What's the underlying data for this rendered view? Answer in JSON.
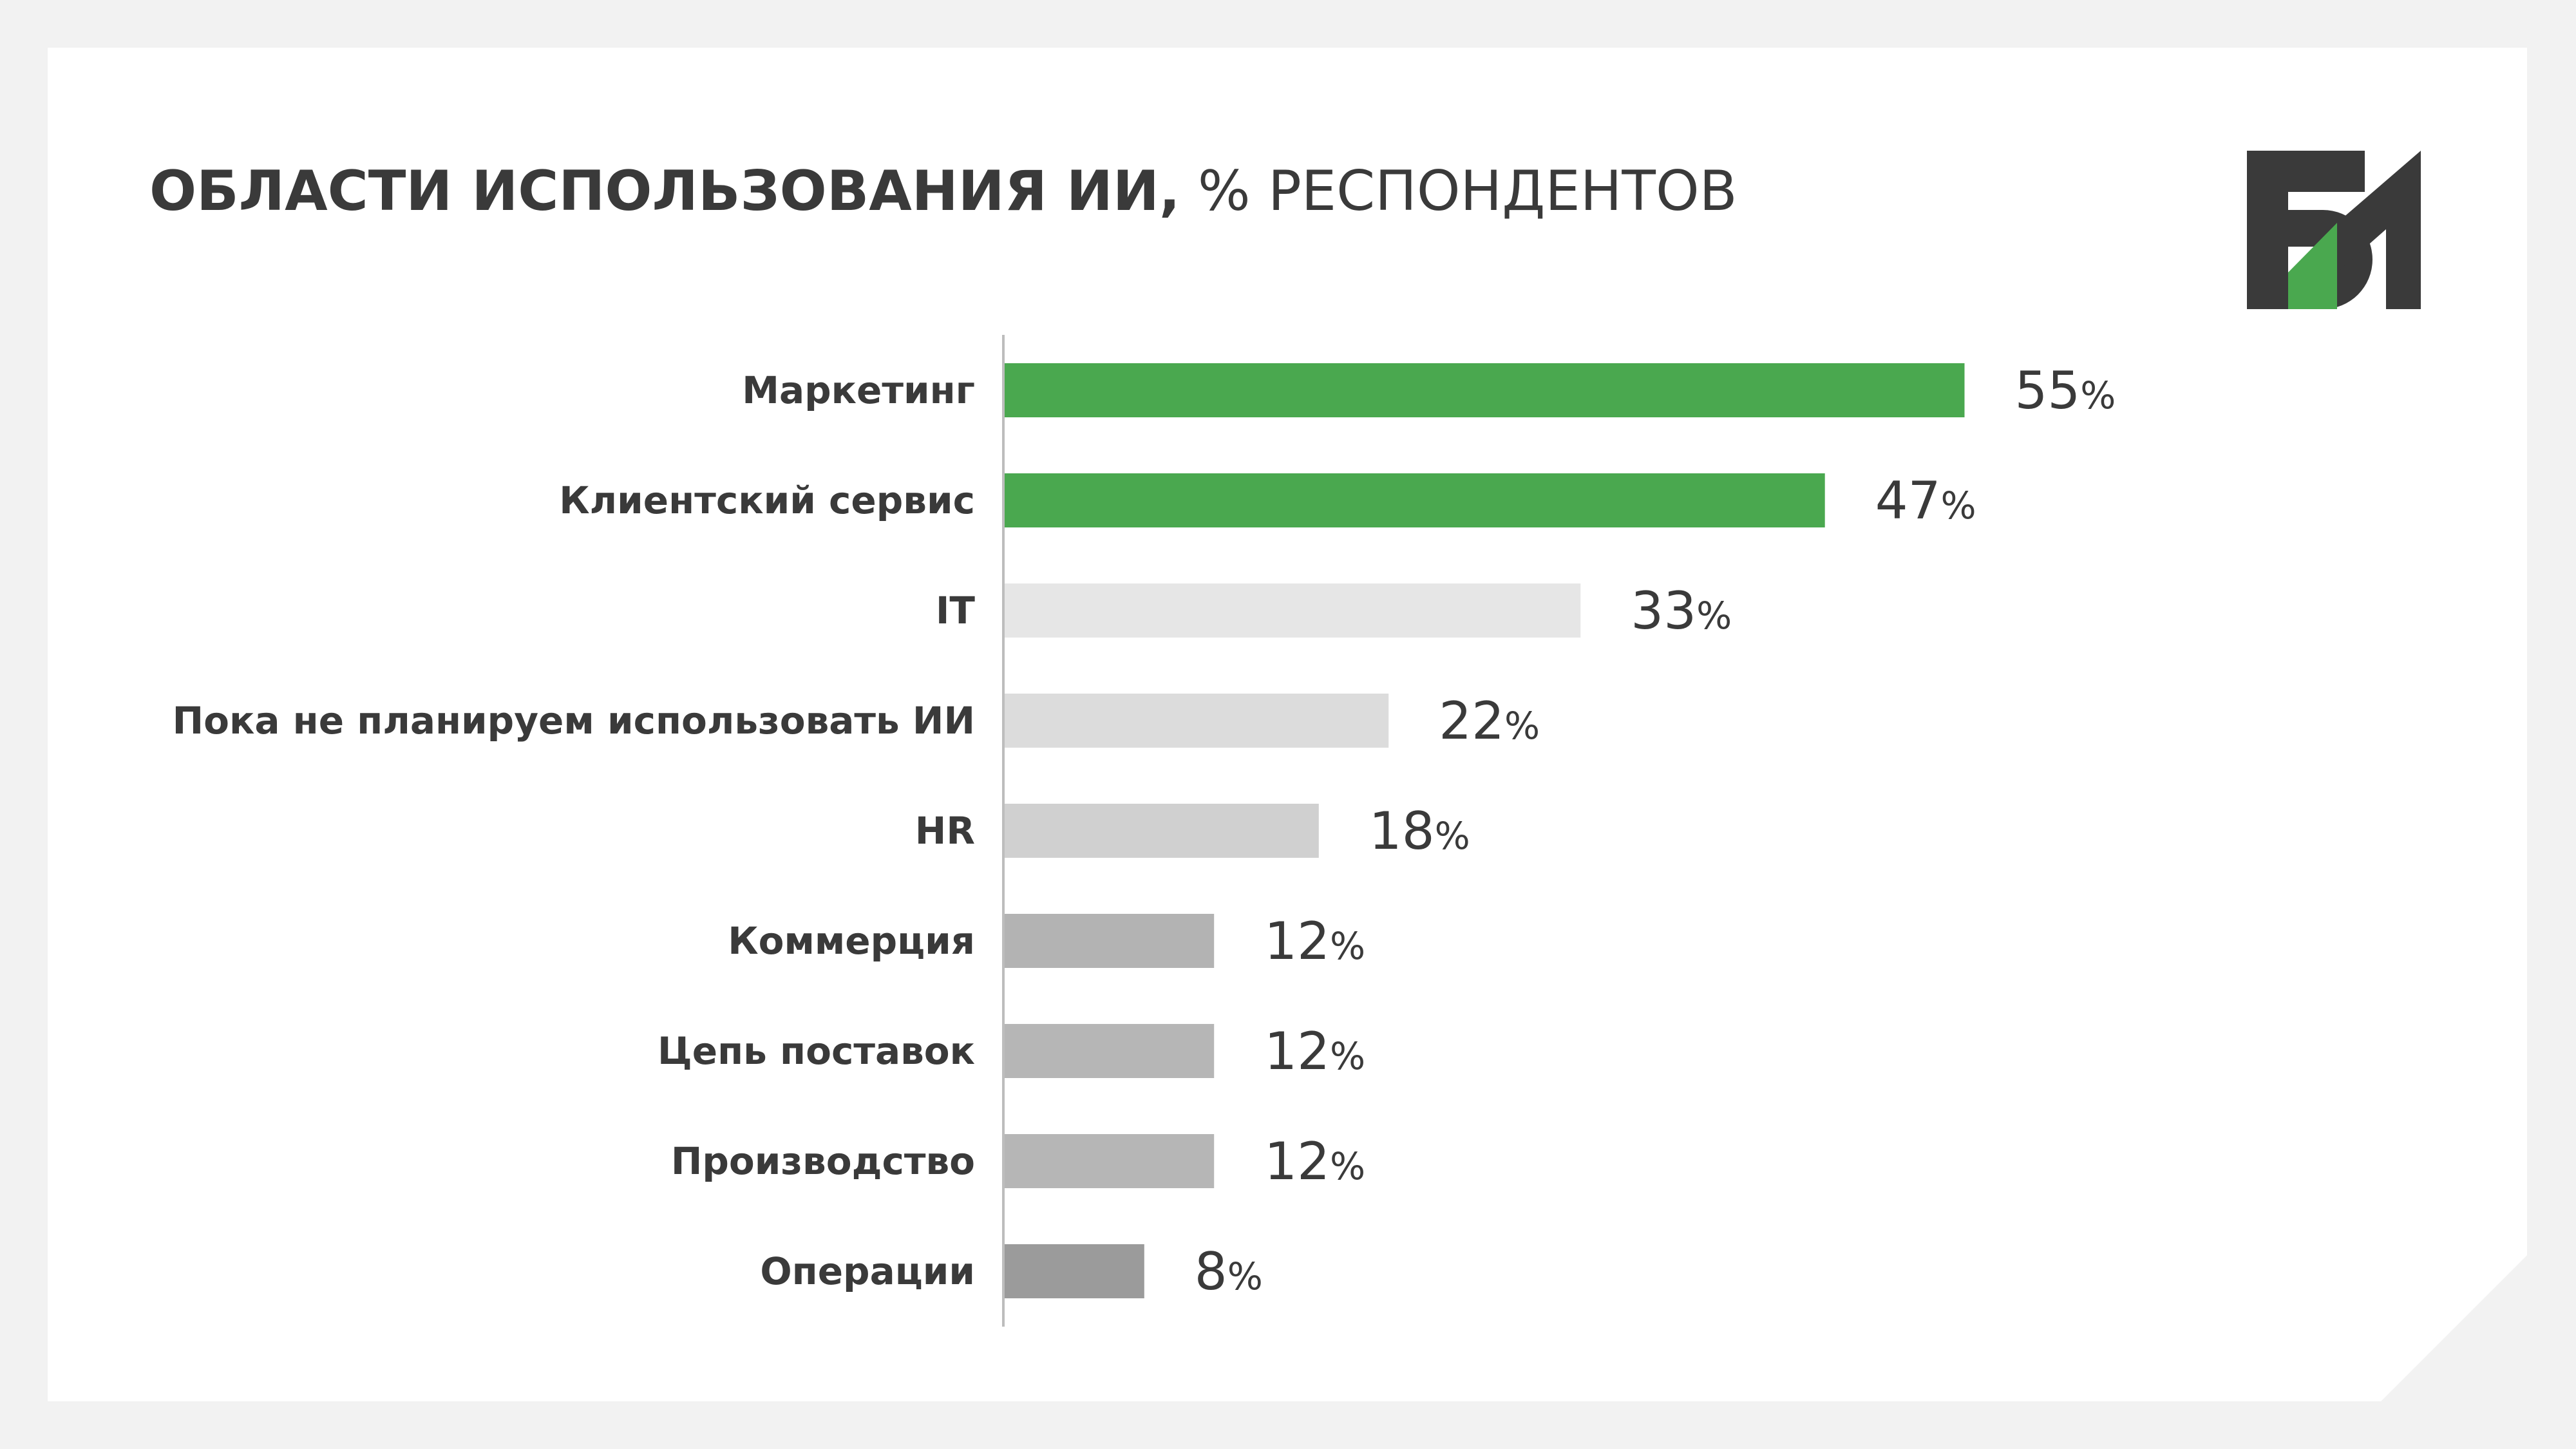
{
  "title": {
    "main": "ОБЛАСТИ ИСПОЛЬЗОВАНИЯ ИИ,",
    "sub": " % РЕСПОНДЕНТОВ"
  },
  "colors": {
    "background": "#f2f2f2",
    "card": "#ffffff",
    "text": "#3a3a3a",
    "accent_green": "#4aa84f",
    "logo_dark": "#3a3a3a",
    "axis": "#bdbdbd"
  },
  "chart_data": {
    "type": "bar",
    "orientation": "horizontal",
    "unit": "%",
    "categories": [
      "Маркетинг",
      "Клиентский сервис",
      "IT",
      "Пока не планируем использовать ИИ",
      "HR",
      "Коммерция",
      "Цепь поставок",
      "Производство",
      "Операции"
    ],
    "values": [
      55,
      47,
      33,
      22,
      18,
      12,
      12,
      12,
      8
    ],
    "bar_colors": [
      "#4aa84f",
      "#4aa84f",
      "#e6e6e6",
      "#dcdcdc",
      "#d0d0d0",
      "#b3b3b3",
      "#b6b6b6",
      "#b6b6b6",
      "#9b9b9b"
    ],
    "xlim": [
      0,
      60
    ],
    "grid": false,
    "legend": "none"
  }
}
